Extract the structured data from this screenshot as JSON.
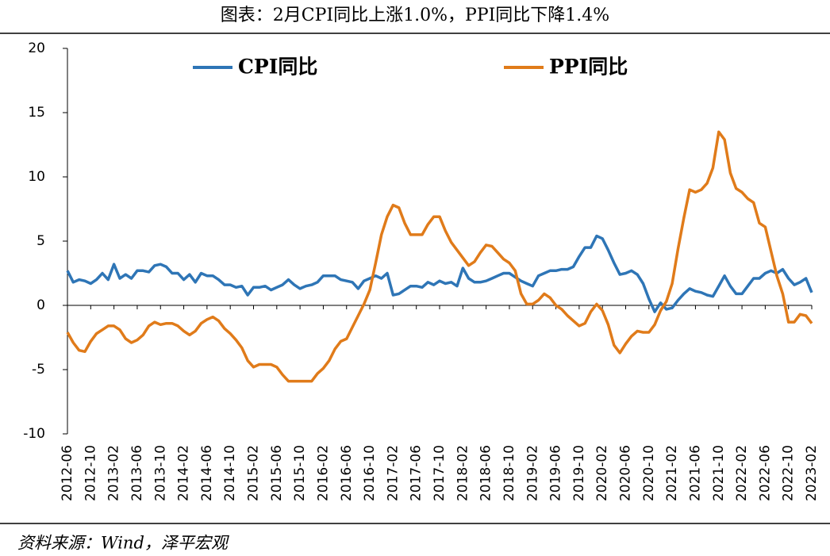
{
  "title": "图表：2月CPI同比上涨1.0%，PPI同比下降1.4%",
  "source": "资料来源：Wind，泽平宏观",
  "chart_data": {
    "type": "line",
    "categories": [
      "2012-06",
      null,
      null,
      null,
      "2012-10",
      null,
      null,
      null,
      "2013-02",
      null,
      null,
      null,
      "2013-06",
      null,
      null,
      null,
      "2013-10",
      null,
      null,
      null,
      "2014-02",
      null,
      null,
      null,
      "2014-06",
      null,
      null,
      null,
      "2014-10",
      null,
      null,
      null,
      "2015-02",
      null,
      null,
      null,
      "2015-06",
      null,
      null,
      null,
      "2015-10",
      null,
      null,
      null,
      "2016-02",
      null,
      null,
      null,
      "2016-06",
      null,
      null,
      null,
      "2016-10",
      null,
      null,
      null,
      "2017-02",
      null,
      null,
      null,
      "2017-06",
      null,
      null,
      null,
      "2017-10",
      null,
      null,
      null,
      "2018-02",
      null,
      null,
      null,
      "2018-06",
      null,
      null,
      null,
      "2018-10",
      null,
      null,
      null,
      "2019-02",
      null,
      null,
      null,
      "2019-06",
      null,
      null,
      null,
      "2019-10",
      null,
      null,
      null,
      "2020-02",
      null,
      null,
      null,
      "2020-06",
      null,
      null,
      null,
      "2020-10",
      null,
      null,
      null,
      "2021-02",
      null,
      null,
      null,
      "2021-06",
      null,
      null,
      null,
      "2021-10",
      null,
      null,
      null,
      "2022-02",
      null,
      null,
      null,
      "2022-06",
      null,
      null,
      null,
      "2022-10",
      null,
      null,
      null,
      "2023-02"
    ],
    "series": [
      {
        "name": "CPI同比",
        "color": "#2e75b6",
        "values": [
          2.7,
          1.8,
          2.0,
          1.9,
          1.7,
          2.0,
          2.5,
          2.0,
          3.2,
          2.1,
          2.4,
          2.1,
          2.7,
          2.7,
          2.6,
          3.1,
          3.2,
          3.0,
          2.5,
          2.5,
          2.0,
          2.4,
          1.8,
          2.5,
          2.3,
          2.3,
          2.0,
          1.6,
          1.6,
          1.4,
          1.5,
          0.8,
          1.4,
          1.4,
          1.5,
          1.2,
          1.4,
          1.6,
          2.0,
          1.6,
          1.3,
          1.5,
          1.6,
          1.8,
          2.3,
          2.3,
          2.3,
          2.0,
          1.9,
          1.8,
          1.3,
          1.9,
          2.1,
          2.3,
          2.1,
          2.5,
          0.8,
          0.9,
          1.2,
          1.5,
          1.5,
          1.4,
          1.8,
          1.6,
          1.9,
          1.7,
          1.8,
          1.5,
          2.9,
          2.1,
          1.8,
          1.8,
          1.9,
          2.1,
          2.3,
          2.5,
          2.5,
          2.2,
          1.9,
          1.7,
          1.5,
          2.3,
          2.5,
          2.7,
          2.7,
          2.8,
          2.8,
          3.0,
          3.8,
          4.5,
          4.5,
          5.4,
          5.2,
          4.3,
          3.3,
          2.4,
          2.5,
          2.7,
          2.4,
          1.7,
          0.5,
          -0.5,
          0.2,
          -0.3,
          -0.2,
          0.4,
          0.9,
          1.3,
          1.1,
          1.0,
          0.8,
          0.7,
          1.5,
          2.3,
          1.5,
          0.9,
          0.9,
          1.5,
          2.1,
          2.1,
          2.5,
          2.7,
          2.5,
          2.8,
          2.1,
          1.6,
          1.8,
          2.1,
          1.0
        ]
      },
      {
        "name": "PPI同比",
        "color": "#e07b1a",
        "values": [
          -2.1,
          -2.9,
          -3.5,
          -3.6,
          -2.8,
          -2.2,
          -1.9,
          -1.6,
          -1.6,
          -1.9,
          -2.6,
          -2.9,
          -2.7,
          -2.3,
          -1.6,
          -1.3,
          -1.5,
          -1.4,
          -1.4,
          -1.6,
          -2.0,
          -2.3,
          -2.0,
          -1.4,
          -1.1,
          -0.9,
          -1.2,
          -1.8,
          -2.2,
          -2.7,
          -3.3,
          -4.3,
          -4.8,
          -4.6,
          -4.6,
          -4.6,
          -4.8,
          -5.4,
          -5.9,
          -5.9,
          -5.9,
          -5.9,
          -5.9,
          -5.3,
          -4.9,
          -4.3,
          -3.4,
          -2.8,
          -2.6,
          -1.7,
          -0.8,
          0.1,
          1.2,
          3.3,
          5.5,
          6.9,
          7.8,
          7.6,
          6.4,
          5.5,
          5.5,
          5.5,
          6.3,
          6.9,
          6.9,
          5.8,
          4.9,
          4.3,
          3.7,
          3.1,
          3.4,
          4.1,
          4.7,
          4.6,
          4.1,
          3.6,
          3.3,
          2.7,
          0.9,
          0.1,
          0.1,
          0.4,
          0.9,
          0.6,
          0.0,
          -0.3,
          -0.8,
          -1.2,
          -1.6,
          -1.4,
          -0.5,
          0.1,
          -0.4,
          -1.5,
          -3.1,
          -3.7,
          -3.0,
          -2.4,
          -2.0,
          -2.1,
          -2.1,
          -1.5,
          -0.4,
          0.3,
          1.7,
          4.4,
          6.8,
          9.0,
          8.8,
          9.0,
          9.5,
          10.7,
          13.5,
          12.9,
          10.3,
          9.1,
          8.8,
          8.3,
          8.0,
          6.4,
          6.1,
          4.2,
          2.3,
          0.9,
          -1.3,
          -1.3,
          -0.7,
          -0.8,
          -1.4
        ]
      }
    ],
    "ylim": [
      -10,
      20
    ],
    "yticks": [
      -10,
      -5,
      0,
      5,
      10,
      15,
      20
    ]
  }
}
